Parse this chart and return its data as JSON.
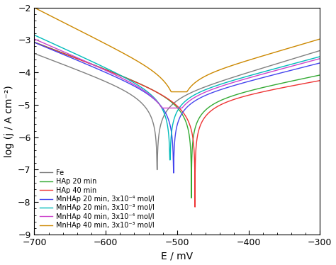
{
  "title": "",
  "xlabel": "E / mV",
  "ylabel": "log (j / A cm⁻²)",
  "xlim": [
    -700,
    -300
  ],
  "ylim": [
    -9,
    -2
  ],
  "xticks": [
    -700,
    -600,
    -500,
    -400,
    -300
  ],
  "yticks": [
    -9,
    -8,
    -7,
    -6,
    -5,
    -4,
    -3,
    -2
  ],
  "series": [
    {
      "label": "Fe",
      "color": "#808080",
      "E_corr": -528,
      "j_corr": -4.85,
      "ba": 150,
      "bc": 120,
      "spike_depth": -7.0,
      "spike_sigma": 5
    },
    {
      "label": "HAp 20 min",
      "color": "#33aa33",
      "E_corr": -480,
      "j_corr": -4.9,
      "ba": 220,
      "bc": 120,
      "spike_depth": -8.1,
      "spike_sigma": 4
    },
    {
      "label": "HAp 40 min",
      "color": "#ee3333",
      "E_corr": -475,
      "j_corr": -4.95,
      "ba": 250,
      "bc": 120,
      "spike_depth": -8.15,
      "spike_sigma": 3.5
    },
    {
      "label": "MnHAp 20 min, 3x10⁻⁴ mol/l",
      "color": "#4444ee",
      "E_corr": -505,
      "j_corr": -4.85,
      "ba": 180,
      "bc": 110,
      "spike_depth": -7.1,
      "spike_sigma": 4
    },
    {
      "label": "MnHAp 20 min, 3x10⁻³ mol/l",
      "color": "#00bbbb",
      "E_corr": -510,
      "j_corr": -4.75,
      "ba": 170,
      "bc": 100,
      "spike_depth": -6.7,
      "spike_sigma": 4
    },
    {
      "label": "MnHAp 40 min, 3x10⁻⁴ mol/l",
      "color": "#cc44cc",
      "E_corr": -508,
      "j_corr": -4.8,
      "ba": 170,
      "bc": 105,
      "spike_depth": -5.1,
      "spike_sigma": 3.5
    },
    {
      "label": "MnHAp 40 min, 3x10⁻³ mol/l",
      "color": "#cc8800",
      "E_corr": -498,
      "j_corr": -4.25,
      "ba": 155,
      "bc": 90,
      "spike_depth": -4.6,
      "spike_sigma": 3.5
    }
  ],
  "background_color": "#ffffff",
  "legend_fontsize": 7.0
}
